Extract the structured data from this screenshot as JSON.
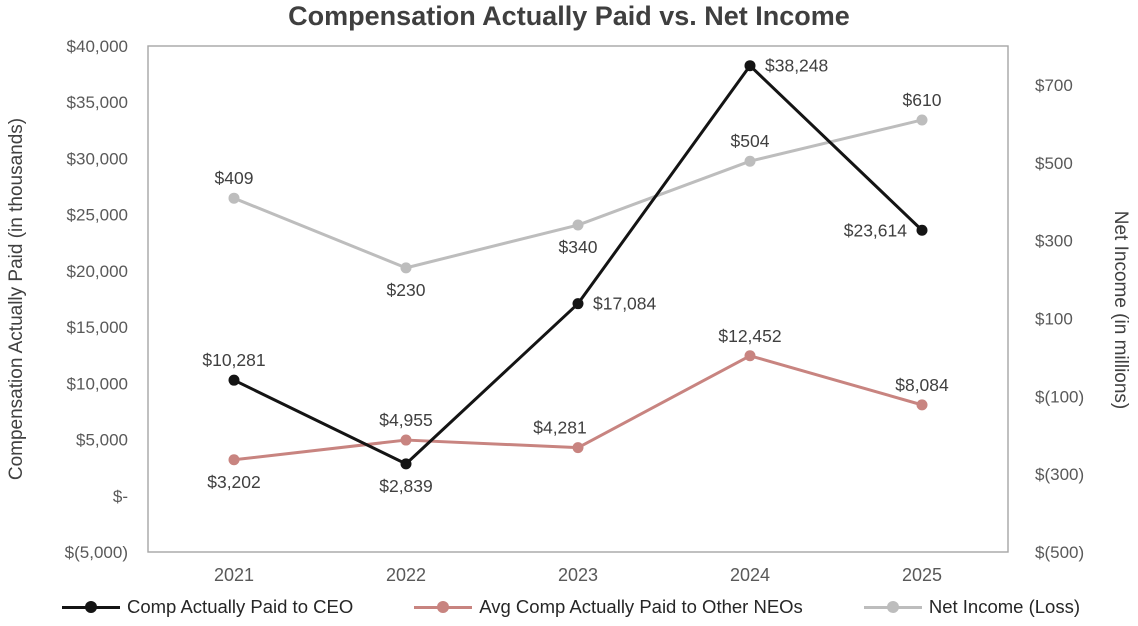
{
  "chart_data": {
    "type": "line",
    "title": "Compensation Actually Paid vs. Net Income",
    "categories": [
      "2021",
      "2022",
      "2023",
      "2024",
      "2025"
    ],
    "series": [
      {
        "name": "Comp Actually Paid to CEO",
        "axis": "left",
        "color": "#141414",
        "values": [
          10281,
          2839,
          17084,
          38248,
          23614
        ],
        "point_labels": [
          "$10,281",
          "$2,839",
          "$17,084",
          "$38,248",
          "$23,614"
        ],
        "label_positions": [
          "above",
          "below",
          "right",
          "right",
          "left"
        ]
      },
      {
        "name": "Avg Comp Actually Paid to Other NEOs",
        "axis": "left",
        "color": "#c88480",
        "values": [
          3202,
          4955,
          4281,
          12452,
          8084
        ],
        "point_labels": [
          "$3,202",
          "$4,955",
          "$4,281",
          "$12,452",
          "$8,084"
        ],
        "label_positions": [
          "below",
          "above",
          "above-left",
          "above",
          "above"
        ]
      },
      {
        "name": "Net Income (Loss)",
        "axis": "right",
        "color": "#bdbdbd",
        "values": [
          409,
          230,
          340,
          504,
          610
        ],
        "point_labels": [
          "$409",
          "$230",
          "$340",
          "$504",
          "$610"
        ],
        "label_positions": [
          "above",
          "below",
          "below",
          "above",
          "above"
        ]
      }
    ],
    "left_axis": {
      "label": "Compensation Actually Paid (in thousands)",
      "min": -5000,
      "max": 40000,
      "ticks": [
        {
          "value": 40000,
          "label": "$40,000"
        },
        {
          "value": 35000,
          "label": "$35,000"
        },
        {
          "value": 30000,
          "label": "$30,000"
        },
        {
          "value": 25000,
          "label": "$25,000"
        },
        {
          "value": 20000,
          "label": "$20,000"
        },
        {
          "value": 15000,
          "label": "$15,000"
        },
        {
          "value": 10000,
          "label": "$10,000"
        },
        {
          "value": 5000,
          "label": "$5,000"
        },
        {
          "value": 0,
          "label": "$-"
        },
        {
          "value": -5000,
          "label": "$(5,000)"
        }
      ]
    },
    "right_axis": {
      "label": "Net Income (in millions)",
      "min": -500,
      "max": 800,
      "ticks": [
        {
          "value": 700,
          "label": "$700"
        },
        {
          "value": 500,
          "label": "$500"
        },
        {
          "value": 300,
          "label": "$300"
        },
        {
          "value": 100,
          "label": "$100"
        },
        {
          "value": -100,
          "label": "$(100)"
        },
        {
          "value": -300,
          "label": "$(300)"
        },
        {
          "value": -500,
          "label": "$(500)"
        }
      ]
    },
    "legend_position": "bottom",
    "grid": false,
    "colors": {
      "title_text": "#3f3f3f",
      "axis_text": "#595959",
      "label_text": "#404040",
      "plot_border": "#a6a6a6",
      "background": "#ffffff"
    }
  }
}
